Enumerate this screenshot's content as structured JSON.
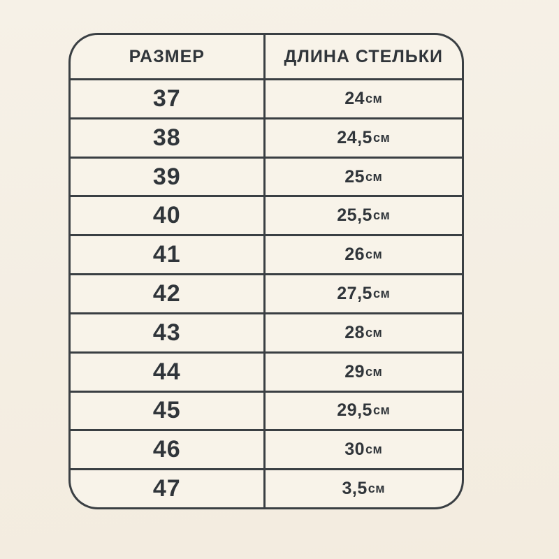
{
  "chart_data": {
    "type": "table",
    "title": "",
    "columns": [
      "РАЗМЕР",
      "ДЛИНА СТЕЛЬКИ"
    ],
    "unit_label": "см",
    "rows": [
      {
        "size": "37",
        "length": "24",
        "unit": "см"
      },
      {
        "size": "38",
        "length": "24,5",
        "unit": "см"
      },
      {
        "size": "39",
        "length": "25",
        "unit": "см"
      },
      {
        "size": "40",
        "length": "25,5",
        "unit": "см"
      },
      {
        "size": "41",
        "length": "26",
        "unit": "см"
      },
      {
        "size": "42",
        "length": "27,5",
        "unit": "см"
      },
      {
        "size": "43",
        "length": "28",
        "unit": "см"
      },
      {
        "size": "44",
        "length": "29",
        "unit": "см"
      },
      {
        "size": "45",
        "length": "29,5",
        "unit": "см"
      },
      {
        "size": "46",
        "length": "30",
        "unit": "см"
      },
      {
        "size": "47",
        "length": "3,5",
        "unit": "см"
      }
    ]
  },
  "colors": {
    "page_background": "#f4eee3",
    "cell_background": "#f8f3e9",
    "border": "#3a3f43",
    "text": "#30353a"
  }
}
